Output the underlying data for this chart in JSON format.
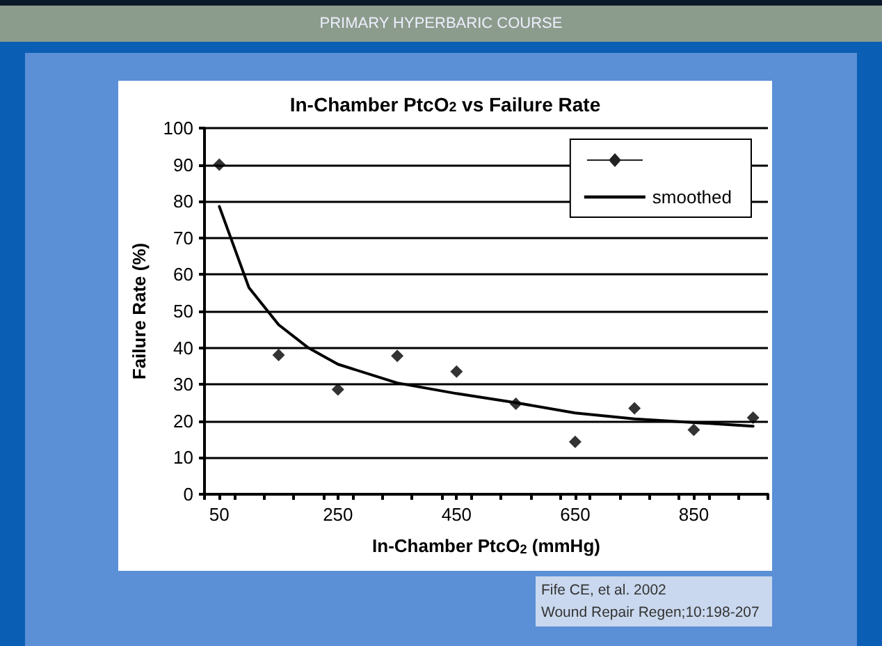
{
  "chart_data": {
    "type": "scatter",
    "title": "In-Chamber PtcO$_{2}$ vs Failure Rate",
    "xlabel": "In-Chamber PtcO$_{2}$ (mmHg)",
    "ylabel": "Failure Rate (%)",
    "annotations": [
      "PRIMARY HYPERBARIC COURSE",
      "Fife CE, et al. 2002",
      "Wound Repair Regen;10:198-207"
    ],
    "x": [
      50,
      150,
      250,
      350,
      450,
      550,
      650,
      750,
      850,
      950
    ],
    "series": [
      {
        "type": "scatter",
        "color": "#000000",
        "values": [
          90,
          38,
          28.6,
          37.8,
          33.5,
          24.7,
          14.3,
          23.5,
          17.6,
          20.9
        ]
      },
      {
        "type": "line",
        "name": "smoothed",
        "color": "#000000",
        "marker": "none",
        "x": [
          50,
          100,
          150,
          200,
          250,
          350,
          450,
          550,
          650,
          750,
          850,
          950
        ],
        "values": [
          78.6,
          56.4,
          46.3,
          40,
          35.5,
          30.4,
          27.5,
          25,
          22.2,
          20.6,
          19.6,
          18.6
        ]
      }
    ],
    "xlim": [
      25,
      975
    ],
    "xticks": [
      {
        "value": 25,
        "label": null
      },
      50,
      {
        "value": 75,
        "label": null
      },
      {
        "value": 125,
        "label": null
      },
      {
        "value": 175,
        "label": null
      },
      {
        "value": 225,
        "label": null
      },
      250,
      {
        "value": 275,
        "label": null
      },
      {
        "value": 325,
        "label": null
      },
      {
        "value": 375,
        "label": null
      },
      {
        "value": 425,
        "label": null
      },
      450,
      {
        "value": 475,
        "label": null
      },
      {
        "value": 525,
        "label": null
      },
      {
        "value": 575,
        "label": null
      },
      {
        "value": 625,
        "label": null
      },
      650,
      {
        "value": 675,
        "label": null
      },
      {
        "value": 725,
        "label": null
      },
      {
        "value": 775,
        "label": null
      },
      {
        "value": 825,
        "label": null
      },
      850,
      {
        "value": 875,
        "label": null
      },
      {
        "value": 925,
        "label": null
      },
      {
        "value": 975,
        "label": null
      }
    ],
    "ylim": [
      0,
      100
    ],
    "yticks": [
      0,
      10,
      20,
      30,
      40,
      50,
      60,
      70,
      80,
      90,
      100
    ],
    "grid": "y",
    "legend": "top right",
    "marker": "diamond"
  }
}
